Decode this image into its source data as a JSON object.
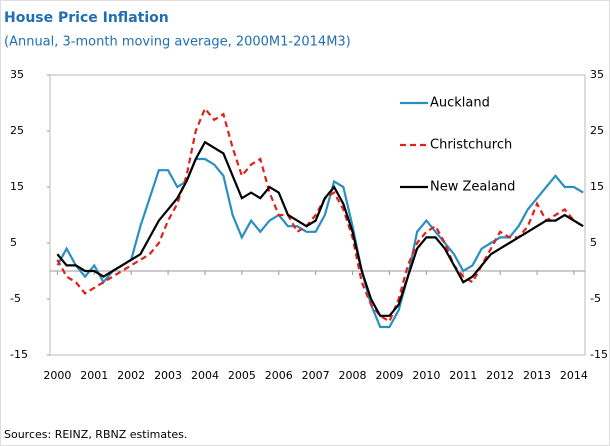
{
  "chart_data": {
    "type": "line",
    "title": "House Price Inflation",
    "subtitle": "(Annual, 3-month moving average, 2000M1-2014M3)",
    "source": "Sources: REINZ, RBNZ estimates.",
    "x": [
      2000,
      2000.25,
      2000.5,
      2000.75,
      2001,
      2001.25,
      2001.5,
      2001.75,
      2002,
      2002.25,
      2002.5,
      2002.75,
      2003,
      2003.25,
      2003.5,
      2003.75,
      2004,
      2004.25,
      2004.5,
      2004.75,
      2005,
      2005.25,
      2005.5,
      2005.75,
      2006,
      2006.25,
      2006.5,
      2006.75,
      2007,
      2007.25,
      2007.5,
      2007.75,
      2008,
      2008.25,
      2008.5,
      2008.75,
      2009,
      2009.25,
      2009.5,
      2009.75,
      2010,
      2010.25,
      2010.5,
      2010.75,
      2011,
      2011.25,
      2011.5,
      2011.75,
      2012,
      2012.25,
      2012.5,
      2012.75,
      2013,
      2013.25,
      2013.5,
      2013.75,
      2014,
      2014.25
    ],
    "series": [
      {
        "name": "Auckland",
        "color": "#2a8fc0",
        "dash": false,
        "values": [
          1,
          4,
          1,
          -1,
          1,
          -2,
          0,
          1,
          2,
          8,
          13,
          18,
          18,
          15,
          16,
          20,
          20,
          19,
          17,
          10,
          6,
          9,
          7,
          9,
          10,
          8,
          8,
          7,
          7,
          10,
          16,
          15,
          8,
          0,
          -6,
          -10,
          -10,
          -7,
          -1,
          7,
          9,
          7,
          5,
          3,
          0,
          1,
          4,
          5,
          6,
          6,
          8,
          11,
          13,
          15,
          17,
          15,
          15,
          14
        ]
      },
      {
        "name": "Christchurch",
        "color": "#e0201b",
        "dash": true,
        "values": [
          2,
          -1,
          -2,
          -4,
          -3,
          -2,
          -1,
          0,
          1,
          2,
          3,
          5,
          9,
          12,
          17,
          25,
          29,
          27,
          28,
          22,
          17,
          19,
          20,
          14,
          10,
          10,
          7,
          8,
          10,
          13,
          14,
          11,
          6,
          -2,
          -6,
          -8,
          -9,
          -5,
          1,
          5,
          7,
          8,
          5,
          1,
          -1,
          -2,
          1,
          4,
          7,
          6,
          6,
          8,
          12,
          9,
          10,
          11,
          9,
          8
        ]
      },
      {
        "name": "New Zealand",
        "color": "#000000",
        "dash": false,
        "values": [
          3,
          1,
          1,
          0,
          0,
          -1,
          0,
          1,
          2,
          3,
          6,
          9,
          11,
          13,
          16,
          20,
          23,
          22,
          21,
          17,
          13,
          14,
          13,
          15,
          14,
          10,
          9,
          8,
          9,
          13,
          15,
          12,
          7,
          0,
          -5,
          -8,
          -8,
          -6,
          -1,
          4,
          6,
          6,
          4,
          1,
          -2,
          -1,
          1,
          3,
          4,
          5,
          6,
          7,
          8,
          9,
          9,
          10,
          9,
          8
        ]
      }
    ],
    "xlim": [
      1999.8,
      2014.3
    ],
    "xticks": [
      2000,
      2001,
      2002,
      2003,
      2004,
      2005,
      2006,
      2007,
      2008,
      2009,
      2010,
      2011,
      2012,
      2013,
      2014
    ],
    "ylim": [
      -15,
      35
    ],
    "yticks": [
      -15,
      -5,
      5,
      15,
      25,
      35
    ],
    "legend": "upper-right"
  }
}
